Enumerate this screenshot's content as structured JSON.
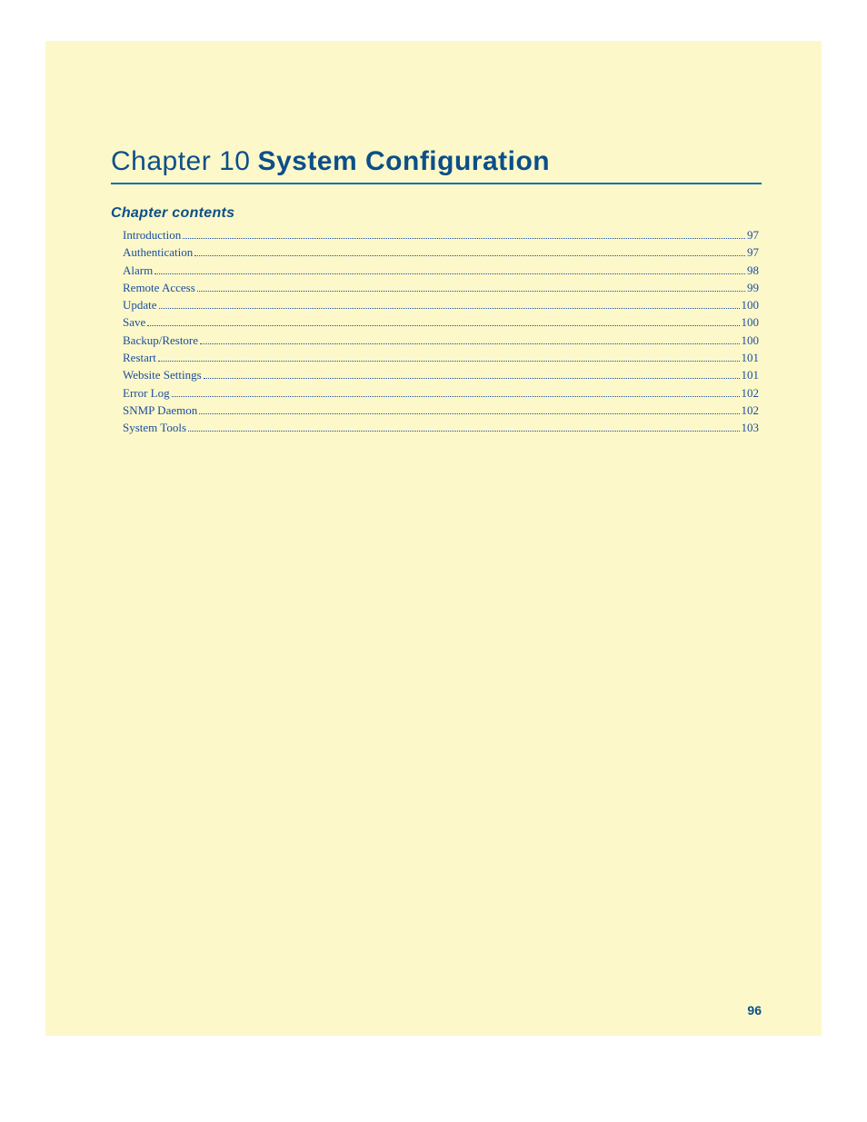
{
  "colors": {
    "page_bg": "#fdf8c9",
    "outer_bg": "#ffffff",
    "heading_color": "#0b4f89",
    "rule_color": "#0b6fab",
    "toc_link_color": "#1a4ea0"
  },
  "chapter": {
    "prefix": "Chapter 10",
    "title": "System Configuration",
    "prefix_fontsize": 30,
    "title_fontsize": 30,
    "title_weight": 900
  },
  "contents_heading": {
    "label": "Chapter contents",
    "fontsize": 16,
    "italic": true
  },
  "toc": {
    "fontsize": 13,
    "line_height": 19.3,
    "items": [
      {
        "label": "Introduction",
        "page": "97"
      },
      {
        "label": "Authentication",
        "page": "97"
      },
      {
        "label": "Alarm",
        "page": "98"
      },
      {
        "label": "Remote Access",
        "page": "99"
      },
      {
        "label": "Update",
        "page": "100"
      },
      {
        "label": "Save",
        "page": "100"
      },
      {
        "label": "Backup/Restore",
        "page": "100"
      },
      {
        "label": "Restart",
        "page": "101"
      },
      {
        "label": "Website Settings",
        "page": "101"
      },
      {
        "label": "Error Log",
        "page": "102"
      },
      {
        "label": "SNMP Daemon",
        "page": "102"
      },
      {
        "label": "System Tools",
        "page": "103"
      }
    ]
  },
  "page_number": "96"
}
